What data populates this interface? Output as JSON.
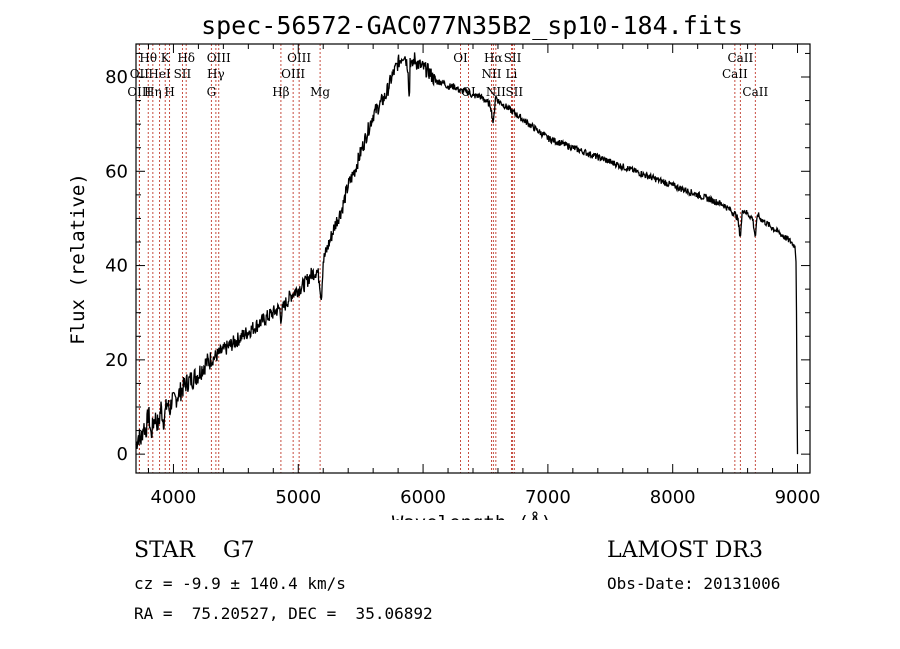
{
  "chart_data": {
    "type": "line",
    "title": "spec-56572-GAC077N35B2_sp10-184.fits",
    "xlabel": "Wavelength (Å)",
    "ylabel": "Flux (relative)",
    "xlim": [
      3700,
      9100
    ],
    "ylim": [
      -4,
      87
    ],
    "x_ticks": [
      4000,
      5000,
      6000,
      7000,
      8000,
      9000
    ],
    "y_ticks": [
      0,
      20,
      40,
      60,
      80
    ],
    "series": [
      {
        "name": "flux",
        "x": [
          3700,
          3720,
          3740,
          3760,
          3780,
          3800,
          3820,
          3850,
          3880,
          3900,
          3920,
          3950,
          3970,
          3990,
          4000,
          4050,
          4100,
          4150,
          4200,
          4250,
          4300,
          4350,
          4400,
          4450,
          4500,
          4550,
          4600,
          4650,
          4700,
          4750,
          4800,
          4850,
          4860,
          4880,
          4900,
          4950,
          5000,
          5050,
          5100,
          5150,
          5170,
          5185,
          5200,
          5250,
          5300,
          5350,
          5400,
          5450,
          5500,
          5550,
          5600,
          5650,
          5700,
          5750,
          5800,
          5850,
          5880,
          5890,
          5896,
          5910,
          5930,
          5950,
          6000,
          6050,
          6100,
          6150,
          6200,
          6250,
          6300,
          6350,
          6400,
          6450,
          6500,
          6540,
          6563,
          6580,
          6600,
          6650,
          6700,
          6750,
          6800,
          6850,
          6900,
          6950,
          7000,
          7100,
          7200,
          7300,
          7400,
          7500,
          7600,
          7700,
          7800,
          7900,
          8000,
          8100,
          8200,
          8300,
          8400,
          8450,
          8498,
          8520,
          8542,
          8560,
          8600,
          8640,
          8662,
          8680,
          8700,
          8750,
          8800,
          8850,
          8900,
          8950,
          8980,
          8990,
          8995,
          9000
        ],
        "y": [
          2,
          4,
          3,
          6,
          5,
          9,
          4,
          8,
          6,
          10,
          7,
          11,
          9,
          12,
          11,
          13,
          15,
          16,
          17,
          19,
          20,
          21,
          22,
          23,
          24,
          25,
          26,
          27,
          28,
          29,
          30,
          31,
          29,
          31,
          32,
          34,
          35,
          36,
          38,
          39,
          37,
          33,
          41,
          45,
          49,
          52,
          57,
          60,
          64,
          68,
          72,
          74,
          76,
          80,
          83,
          85,
          82,
          74,
          84,
          82,
          84,
          83,
          82,
          81,
          79,
          79,
          78,
          78,
          77,
          77,
          76,
          76,
          75,
          74,
          70,
          76,
          75,
          74,
          73,
          72,
          71,
          70,
          69,
          68,
          67,
          66,
          65,
          64,
          63,
          62,
          61,
          60,
          59,
          58,
          57,
          56,
          55,
          54,
          53,
          52,
          51,
          50,
          46,
          52,
          51,
          50,
          46,
          51,
          50,
          49,
          48,
          47,
          46,
          45,
          44,
          40,
          15,
          0
        ]
      }
    ],
    "spectral_lines": [
      {
        "label": "Hθ",
        "x": 3798,
        "row": 1
      },
      {
        "label": "OII",
        "x": 3727,
        "row": 2
      },
      {
        "label": "OIII",
        "x": 3727,
        "row": 3
      },
      {
        "label": "K",
        "x": 3934,
        "row": 1
      },
      {
        "label": "HeI",
        "x": 3889,
        "row": 2
      },
      {
        "label": "Hη",
        "x": 3835,
        "row": 3
      },
      {
        "label": "Hδ",
        "x": 4102,
        "row": 1
      },
      {
        "label": "SII",
        "x": 4072,
        "row": 2
      },
      {
        "label": "H",
        "x": 3969,
        "row": 3
      },
      {
        "label": "OIII",
        "x": 4363,
        "row": 1
      },
      {
        "label": "Hγ",
        "x": 4340,
        "row": 2
      },
      {
        "label": "G",
        "x": 4304,
        "row": 3
      },
      {
        "label": "Hβ",
        "x": 4861,
        "row": 3
      },
      {
        "label": "OIII",
        "x": 5007,
        "row": 1
      },
      {
        "label": "OIII",
        "x": 4959,
        "row": 2
      },
      {
        "label": "Mg",
        "x": 5175,
        "row": 3
      },
      {
        "label": "OI",
        "x": 6300,
        "row": 1
      },
      {
        "label": "OI",
        "x": 6364,
        "row": 3
      },
      {
        "label": "Hα",
        "x": 6563,
        "row": 1
      },
      {
        "label": "NII",
        "x": 6548,
        "row": 2
      },
      {
        "label": "NII",
        "x": 6583,
        "row": 3
      },
      {
        "label": "SII",
        "x": 6717,
        "row": 1
      },
      {
        "label": "Li",
        "x": 6708,
        "row": 2
      },
      {
        "label": "SII",
        "x": 6731,
        "row": 3
      },
      {
        "label": "CaII",
        "x": 8542,
        "row": 1
      },
      {
        "label": "CaII",
        "x": 8498,
        "row": 2
      },
      {
        "label": "CaII",
        "x": 8662,
        "row": 3
      }
    ]
  },
  "info": {
    "class_line": "STAR    G7",
    "survey": "LAMOST DR3",
    "redshift": "cz = -9.9 ± 140.4 km/s",
    "obs_date": "Obs-Date: 20131006",
    "coords": "RA =  75.20527, DEC =  35.06892"
  }
}
